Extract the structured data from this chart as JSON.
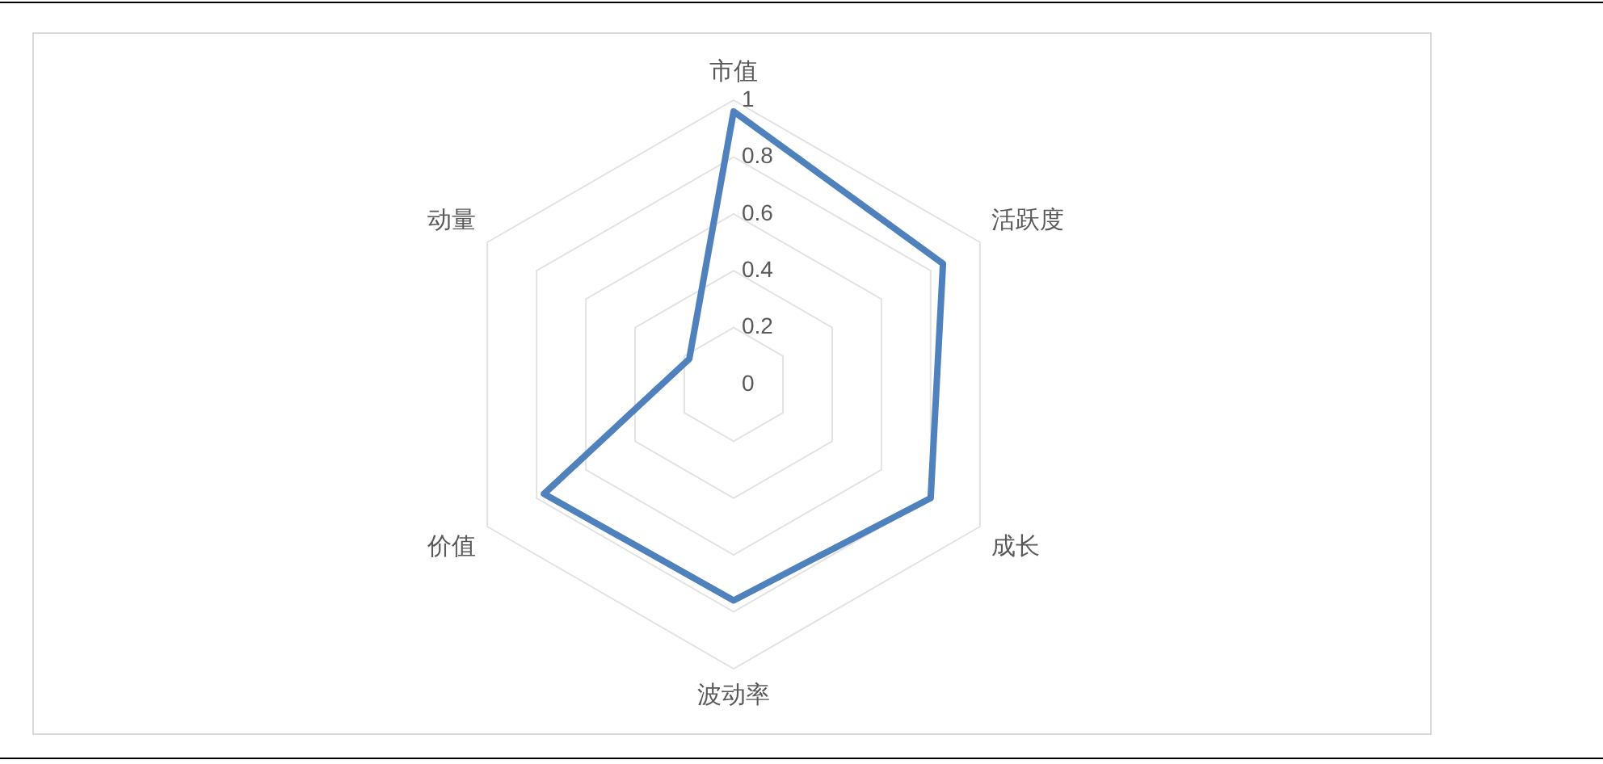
{
  "chart_data": {
    "type": "radar",
    "categories": [
      "市值",
      "活跃度",
      "成长",
      "波动率",
      "价值",
      "动量"
    ],
    "series": [
      {
        "color": "#4f81bd",
        "values": [
          0.96,
          0.85,
          0.8,
          0.76,
          0.77,
          0.18
        ]
      }
    ],
    "ylim": [
      0,
      1
    ],
    "yticks": [
      0,
      0.2,
      0.4,
      0.6,
      0.8,
      1
    ],
    "grid": true,
    "marker": "none"
  }
}
